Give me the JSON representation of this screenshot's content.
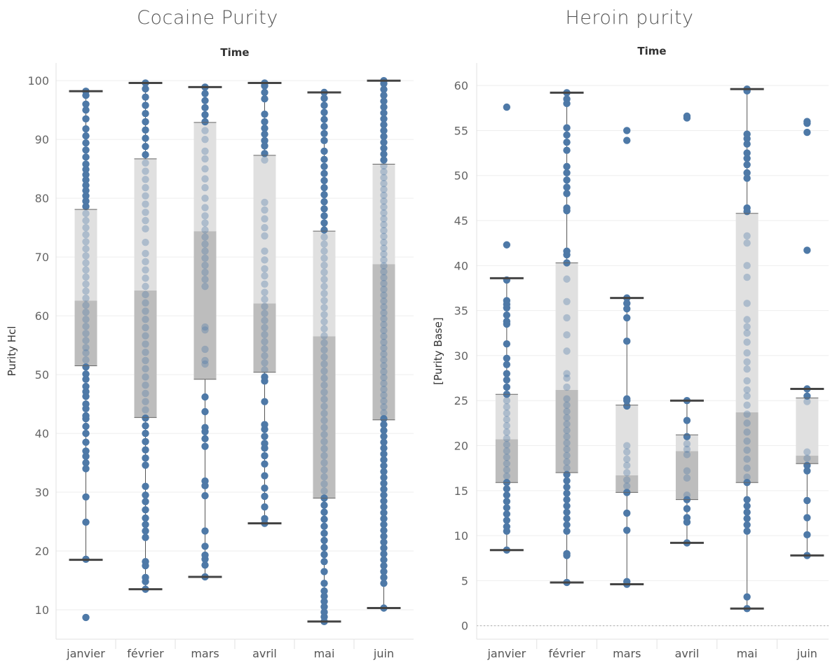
{
  "chart_data": [
    {
      "type": "box",
      "title": "Cocaine Purity",
      "column_header": "Time",
      "ylabel": "Purity Hcl",
      "xlabel": "",
      "ylim": [
        5,
        103
      ],
      "yticks": [
        10,
        20,
        30,
        40,
        50,
        60,
        70,
        80,
        90,
        100
      ],
      "grid": true,
      "categories": [
        "janvier",
        "février",
        "mars",
        "avril",
        "mai",
        "juin"
      ],
      "boxes": [
        {
          "min": 18.5,
          "q1": 51.5,
          "median": 62.6,
          "q3": 78.1,
          "max": 98.2,
          "points": [
            8.7,
            18.6,
            24.9,
            29.2,
            34.0,
            35.0,
            36.1,
            37.0,
            38.5,
            40.0,
            41.2,
            42.5,
            43.0,
            44.2,
            45.0,
            46.3,
            47.1,
            48.0,
            49.2,
            50.1,
            51.3,
            52.5,
            53.7,
            54.6,
            55.8,
            57.0,
            58.2,
            59.4,
            60.6,
            61.8,
            63.0,
            64.2,
            65.4,
            66.6,
            67.8,
            69.0,
            70.2,
            71.4,
            72.6,
            73.8,
            75.0,
            76.2,
            77.4,
            78.6,
            79.5,
            80.4,
            81.3,
            82.2,
            83.1,
            84.0,
            84.9,
            85.8,
            87.0,
            88.2,
            89.4,
            90.6,
            91.8,
            93.5,
            95.0,
            96.0,
            97.5,
            98.2
          ]
        },
        {
          "min": 13.5,
          "q1": 42.7,
          "median": 64.3,
          "q3": 86.7,
          "max": 99.6,
          "points": [
            13.5,
            14.8,
            15.5,
            17.5,
            18.2,
            22.3,
            23.4,
            24.5,
            25.6,
            27.0,
            28.4,
            29.5,
            31.0,
            34.6,
            35.8,
            37.2,
            38.6,
            40.0,
            41.3,
            42.6,
            44.0,
            45.4,
            46.8,
            48.2,
            49.6,
            51.0,
            52.4,
            53.8,
            55.2,
            56.6,
            58.0,
            59.4,
            60.8,
            62.2,
            63.6,
            65.0,
            66.4,
            67.8,
            69.2,
            70.6,
            72.5,
            74.8,
            76.2,
            77.6,
            79.0,
            80.4,
            81.8,
            83.2,
            84.6,
            86.0,
            87.4,
            88.8,
            90.2,
            91.6,
            93.0,
            94.4,
            95.8,
            97.2,
            98.6,
            99.6
          ]
        },
        {
          "min": 15.6,
          "q1": 49.2,
          "median": 74.4,
          "q3": 92.9,
          "max": 98.9,
          "points": [
            15.6,
            17.6,
            18.6,
            19.3,
            20.8,
            23.4,
            29.4,
            31.1,
            31.9,
            37.8,
            39.1,
            40.3,
            41.0,
            43.7,
            46.2,
            51.8,
            52.4,
            54.3,
            57.6,
            58.1,
            65.0,
            66.2,
            67.4,
            68.6,
            69.8,
            71.0,
            72.2,
            73.4,
            74.6,
            75.8,
            77.0,
            78.4,
            80.0,
            81.8,
            83.3,
            85.0,
            86.7,
            88.0,
            90.0,
            91.5,
            93.0,
            94.2,
            95.4,
            96.6,
            97.8,
            98.9
          ]
        },
        {
          "min": 24.7,
          "q1": 50.4,
          "median": 62.1,
          "q3": 87.3,
          "max": 99.6,
          "points": [
            24.7,
            25.5,
            27.5,
            29.3,
            30.7,
            32.8,
            34.8,
            36.2,
            37.5,
            38.3,
            39.5,
            40.7,
            41.5,
            45.4,
            48.9,
            49.6,
            50.8,
            52.0,
            53.2,
            54.4,
            55.6,
            56.8,
            58.0,
            59.2,
            60.4,
            61.6,
            62.8,
            64.0,
            65.4,
            66.8,
            68.0,
            69.5,
            71.0,
            73.6,
            75.0,
            76.5,
            78.0,
            79.3,
            86.5,
            87.6,
            88.9,
            89.8,
            90.9,
            91.9,
            93.0,
            94.3,
            96.9,
            98.0,
            99.1,
            99.6
          ]
        },
        {
          "min": 8.0,
          "q1": 29.0,
          "median": 56.5,
          "q3": 74.4,
          "max": 98.0,
          "points": [
            8.0,
            8.8,
            9.6,
            10.5,
            11.4,
            12.3,
            13.2,
            14.5,
            16.5,
            18.2,
            19.4,
            20.6,
            21.8,
            23.0,
            24.2,
            25.4,
            26.6,
            27.8,
            29.0,
            30.2,
            31.4,
            32.6,
            33.8,
            35.0,
            36.2,
            37.4,
            38.6,
            39.8,
            41.0,
            42.2,
            43.4,
            44.6,
            45.8,
            47.0,
            48.2,
            49.4,
            50.6,
            51.8,
            53.0,
            54.2,
            55.4,
            56.6,
            57.8,
            59.0,
            60.2,
            61.4,
            62.6,
            63.8,
            65.0,
            66.2,
            67.4,
            68.6,
            69.8,
            71.0,
            72.2,
            73.4,
            74.6,
            75.8,
            77.0,
            78.2,
            79.4,
            80.6,
            81.8,
            83.0,
            84.2,
            85.4,
            86.6,
            88.0,
            89.8,
            91.0,
            92.2,
            93.4,
            94.6,
            95.8,
            97.0,
            98.0
          ]
        },
        {
          "min": 10.3,
          "q1": 42.3,
          "median": 68.8,
          "q3": 85.8,
          "max": 100.0,
          "points": [
            10.3,
            14.5,
            15.5,
            16.5,
            17.5,
            18.5,
            19.5,
            20.5,
            21.5,
            22.5,
            23.5,
            24.5,
            25.5,
            26.5,
            27.5,
            28.5,
            29.5,
            30.5,
            31.5,
            32.5,
            33.5,
            34.5,
            35.5,
            36.5,
            37.5,
            38.5,
            39.5,
            40.5,
            41.5,
            42.5,
            43.5,
            44.5,
            45.5,
            46.5,
            47.5,
            48.5,
            49.5,
            50.5,
            51.5,
            52.5,
            53.5,
            54.5,
            55.5,
            56.5,
            57.5,
            58.5,
            59.5,
            60.5,
            61.5,
            62.5,
            63.5,
            64.5,
            65.5,
            66.5,
            67.5,
            68.5,
            69.5,
            70.5,
            71.5,
            72.5,
            73.5,
            74.5,
            75.5,
            76.5,
            77.5,
            78.5,
            79.5,
            80.5,
            81.5,
            82.5,
            83.5,
            84.5,
            85.5,
            86.5,
            87.5,
            88.5,
            89.5,
            90.5,
            91.5,
            92.5,
            93.5,
            94.5,
            95.5,
            96.5,
            97.5,
            98.5,
            99.5,
            100.0
          ]
        }
      ]
    },
    {
      "type": "box",
      "title": "Heroin purity",
      "column_header": "Time",
      "ylabel": "[Purity Base]",
      "xlabel": "",
      "ylim": [
        -1.5,
        62.5
      ],
      "yticks": [
        0,
        5,
        10,
        15,
        20,
        25,
        30,
        35,
        40,
        45,
        50,
        55,
        60
      ],
      "grid": true,
      "zero_line": true,
      "categories": [
        "janvier",
        "février",
        "mars",
        "avril",
        "mai",
        "juin"
      ],
      "boxes": [
        {
          "min": 8.4,
          "q1": 15.9,
          "median": 20.7,
          "q3": 25.7,
          "max": 38.6,
          "points": [
            8.4,
            10.5,
            11.0,
            11.7,
            12.4,
            13.1,
            13.8,
            14.5,
            15.2,
            15.9,
            16.6,
            17.3,
            18.0,
            18.7,
            19.4,
            20.1,
            20.8,
            21.5,
            22.2,
            22.9,
            23.6,
            24.3,
            25.0,
            25.7,
            26.5,
            27.3,
            28.0,
            29.0,
            29.7,
            31.3,
            33.5,
            33.8,
            34.5,
            35.3,
            35.7,
            36.1,
            38.4,
            42.3,
            57.6
          ]
        },
        {
          "min": 4.8,
          "q1": 17.0,
          "median": 26.2,
          "q3": 40.3,
          "max": 59.2,
          "points": [
            4.8,
            7.8,
            8.0,
            10.5,
            11.2,
            11.9,
            12.6,
            13.3,
            14.0,
            14.7,
            15.4,
            16.1,
            16.8,
            17.5,
            18.2,
            18.9,
            19.6,
            20.3,
            21.0,
            21.7,
            22.4,
            23.1,
            23.8,
            24.5,
            25.2,
            26.5,
            27.5,
            28.0,
            30.5,
            32.3,
            34.2,
            36.0,
            38.5,
            40.3,
            41.2,
            41.6,
            46.1,
            46.4,
            48.0,
            48.7,
            49.5,
            50.3,
            51.0,
            52.8,
            53.7,
            54.5,
            55.3,
            58.0,
            58.5,
            59.2
          ]
        },
        {
          "min": 4.6,
          "q1": 14.8,
          "median": 16.7,
          "q3": 24.5,
          "max": 36.4,
          "points": [
            4.6,
            4.9,
            10.6,
            12.5,
            14.8,
            15.5,
            16.2,
            17.0,
            17.8,
            18.5,
            19.3,
            20.0,
            24.4,
            25.0,
            25.2,
            31.6,
            34.2,
            35.2,
            35.8,
            36.4,
            53.9,
            55.0
          ]
        },
        {
          "min": 9.2,
          "q1": 14.0,
          "median": 19.4,
          "q3": 21.2,
          "max": 25.0,
          "points": [
            9.2,
            11.5,
            12.0,
            13.0,
            14.0,
            14.5,
            16.4,
            17.2,
            19.0,
            19.6,
            20.2,
            21.0,
            22.8,
            25.0,
            56.4,
            56.6
          ]
        },
        {
          "min": 1.9,
          "q1": 15.9,
          "median": 23.7,
          "q3": 45.8,
          "max": 59.6,
          "points": [
            1.9,
            3.2,
            10.5,
            11.2,
            11.9,
            12.6,
            13.3,
            14.0,
            15.9,
            16.5,
            17.5,
            18.5,
            19.5,
            20.5,
            21.5,
            22.5,
            23.5,
            24.5,
            25.5,
            26.2,
            27.2,
            28.5,
            29.3,
            30.3,
            31.5,
            32.5,
            33.2,
            34.0,
            35.8,
            38.7,
            40.0,
            42.5,
            43.3,
            46.0,
            46.4,
            49.7,
            50.3,
            51.2,
            51.9,
            52.5,
            53.5,
            54.1,
            54.6,
            59.4,
            59.6
          ]
        },
        {
          "min": 7.8,
          "q1": 18.0,
          "median": 18.9,
          "q3": 25.3,
          "max": 26.3,
          "points": [
            7.8,
            10.1,
            12.0,
            13.9,
            17.2,
            17.8,
            18.6,
            19.3,
            24.9,
            25.5,
            26.3,
            41.7,
            54.8,
            55.8,
            56.0
          ]
        }
      ]
    }
  ]
}
